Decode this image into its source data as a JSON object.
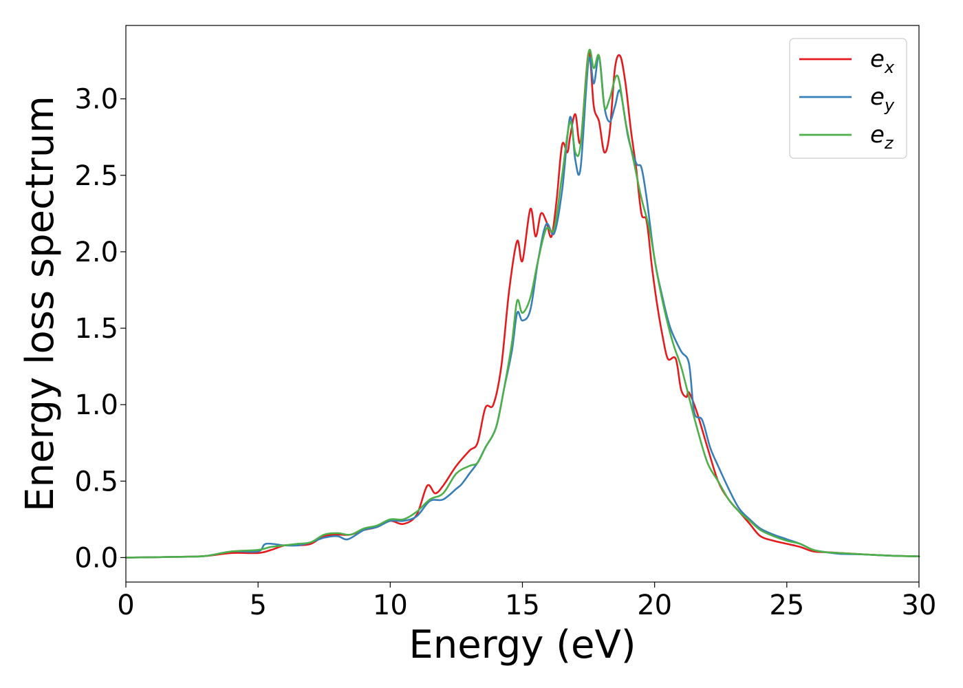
{
  "chart_data": {
    "type": "line",
    "title": "",
    "xlabel": "Energy (eV)",
    "ylabel": "Energy loss spectrum",
    "xlim": [
      0,
      30
    ],
    "ylim": [
      -0.16,
      3.48
    ],
    "xticks": [
      0,
      5,
      10,
      15,
      20,
      25,
      30
    ],
    "xtick_labels": [
      "0",
      "5",
      "10",
      "15",
      "20",
      "25",
      "30"
    ],
    "yticks": [
      0.0,
      0.5,
      1.0,
      1.5,
      2.0,
      2.5,
      3.0
    ],
    "ytick_labels": [
      "0.0",
      "0.5",
      "1.0",
      "1.5",
      "2.0",
      "2.5",
      "3.0"
    ],
    "grid": false,
    "legend_position": "top-right",
    "series": [
      {
        "name": "e_x",
        "label_base": "e",
        "label_sub": "x",
        "color": "#e41a1c",
        "x": [
          0,
          2,
          3,
          4,
          5,
          5.5,
          6,
          6.5,
          7,
          7.5,
          8,
          8.5,
          9,
          9.5,
          10,
          10.5,
          11,
          11.4,
          11.7,
          12,
          12.5,
          13,
          13.3,
          13.6,
          13.9,
          14.2,
          14.5,
          14.8,
          15.0,
          15.3,
          15.5,
          15.7,
          15.9,
          16.1,
          16.3,
          16.5,
          16.7,
          16.8,
          17.0,
          17.2,
          17.5,
          17.7,
          17.9,
          18.1,
          18.3,
          18.5,
          18.7,
          18.9,
          19.1,
          19.3,
          19.5,
          19.7,
          19.9,
          20.1,
          20.3,
          20.5,
          20.8,
          21.0,
          21.2,
          21.3,
          21.6,
          22.0,
          22.4,
          22.8,
          23.2,
          23.6,
          24.0,
          24.5,
          25,
          25.5,
          26,
          26.5,
          27,
          28,
          29,
          30
        ],
        "y": [
          0.0,
          0.005,
          0.01,
          0.03,
          0.03,
          0.05,
          0.08,
          0.08,
          0.09,
          0.14,
          0.15,
          0.15,
          0.18,
          0.2,
          0.24,
          0.22,
          0.28,
          0.47,
          0.42,
          0.47,
          0.6,
          0.7,
          0.75,
          0.98,
          1.0,
          1.25,
          1.75,
          2.07,
          1.94,
          2.28,
          2.1,
          2.25,
          2.2,
          2.1,
          2.35,
          2.7,
          2.65,
          2.75,
          2.9,
          2.72,
          3.3,
          2.95,
          2.85,
          2.65,
          2.78,
          3.2,
          3.28,
          3.1,
          2.8,
          2.55,
          2.25,
          2.2,
          1.9,
          1.65,
          1.45,
          1.3,
          1.3,
          1.1,
          1.05,
          1.08,
          0.95,
          0.72,
          0.5,
          0.38,
          0.3,
          0.22,
          0.14,
          0.11,
          0.09,
          0.07,
          0.04,
          0.035,
          0.03,
          0.02,
          0.012,
          0.008
        ]
      },
      {
        "name": "e_y",
        "label_base": "e",
        "label_sub": "y",
        "color": "#377eb8",
        "x": [
          0,
          2,
          3,
          4,
          5,
          5.3,
          6,
          6.5,
          7,
          7.5,
          8,
          8.4,
          9,
          9.5,
          10,
          10.5,
          11,
          11.5,
          12,
          12.5,
          12.7,
          13,
          13.3,
          13.6,
          14.0,
          14.3,
          14.6,
          14.8,
          15.0,
          15.3,
          15.6,
          15.9,
          16.2,
          16.5,
          16.8,
          17.0,
          17.2,
          17.5,
          17.7,
          17.9,
          18.1,
          18.3,
          18.5,
          18.7,
          19.0,
          19.3,
          19.5,
          19.7,
          20.0,
          20.3,
          20.6,
          21.0,
          21.3,
          21.5,
          21.8,
          22.1,
          22.4,
          22.8,
          23.2,
          23.6,
          24,
          24.5,
          25,
          25.5,
          26,
          26.5,
          27,
          28,
          29,
          30
        ],
        "y": [
          0.0,
          0.005,
          0.01,
          0.04,
          0.04,
          0.09,
          0.08,
          0.08,
          0.1,
          0.13,
          0.14,
          0.12,
          0.18,
          0.2,
          0.24,
          0.24,
          0.27,
          0.37,
          0.38,
          0.45,
          0.48,
          0.55,
          0.62,
          0.72,
          0.85,
          1.1,
          1.35,
          1.6,
          1.55,
          1.62,
          1.95,
          2.18,
          2.12,
          2.4,
          2.88,
          2.6,
          2.55,
          3.25,
          3.1,
          3.28,
          2.95,
          2.85,
          2.95,
          3.05,
          2.75,
          2.58,
          2.55,
          2.35,
          1.95,
          1.7,
          1.5,
          1.35,
          1.27,
          0.95,
          0.9,
          0.72,
          0.6,
          0.45,
          0.32,
          0.25,
          0.19,
          0.15,
          0.12,
          0.09,
          0.05,
          0.035,
          0.025,
          0.02,
          0.012,
          0.008
        ]
      },
      {
        "name": "e_z",
        "label_base": "e",
        "label_sub": "z",
        "color": "#4daf4a",
        "x": [
          0,
          2,
          3,
          4,
          5,
          5.5,
          6,
          6.5,
          7,
          7.5,
          8,
          8.5,
          9,
          9.5,
          10,
          10.5,
          11,
          11.5,
          12,
          12.5,
          13,
          13.3,
          13.6,
          14.0,
          14.3,
          14.6,
          14.8,
          15.0,
          15.3,
          15.6,
          15.9,
          16.2,
          16.5,
          16.8,
          17.0,
          17.2,
          17.5,
          17.7,
          17.9,
          18.1,
          18.3,
          18.6,
          18.9,
          19.2,
          19.5,
          19.8,
          20.1,
          20.4,
          20.7,
          21.0,
          21.3,
          21.6,
          22.0,
          22.4,
          22.8,
          23.2,
          23.6,
          24,
          24.5,
          25,
          25.5,
          26,
          26.5,
          27,
          28,
          29,
          30
        ],
        "y": [
          0.0,
          0.005,
          0.01,
          0.04,
          0.05,
          0.07,
          0.08,
          0.09,
          0.1,
          0.15,
          0.16,
          0.15,
          0.19,
          0.21,
          0.25,
          0.25,
          0.3,
          0.38,
          0.42,
          0.55,
          0.6,
          0.62,
          0.72,
          0.85,
          1.1,
          1.4,
          1.68,
          1.6,
          1.7,
          1.95,
          2.15,
          2.15,
          2.5,
          2.85,
          2.65,
          2.7,
          3.3,
          3.2,
          3.28,
          2.95,
          3.0,
          3.15,
          2.85,
          2.6,
          2.35,
          2.15,
          1.85,
          1.6,
          1.4,
          1.25,
          1.05,
          0.85,
          0.62,
          0.5,
          0.38,
          0.3,
          0.24,
          0.18,
          0.14,
          0.11,
          0.09,
          0.05,
          0.035,
          0.03,
          0.02,
          0.012,
          0.008
        ]
      }
    ]
  }
}
